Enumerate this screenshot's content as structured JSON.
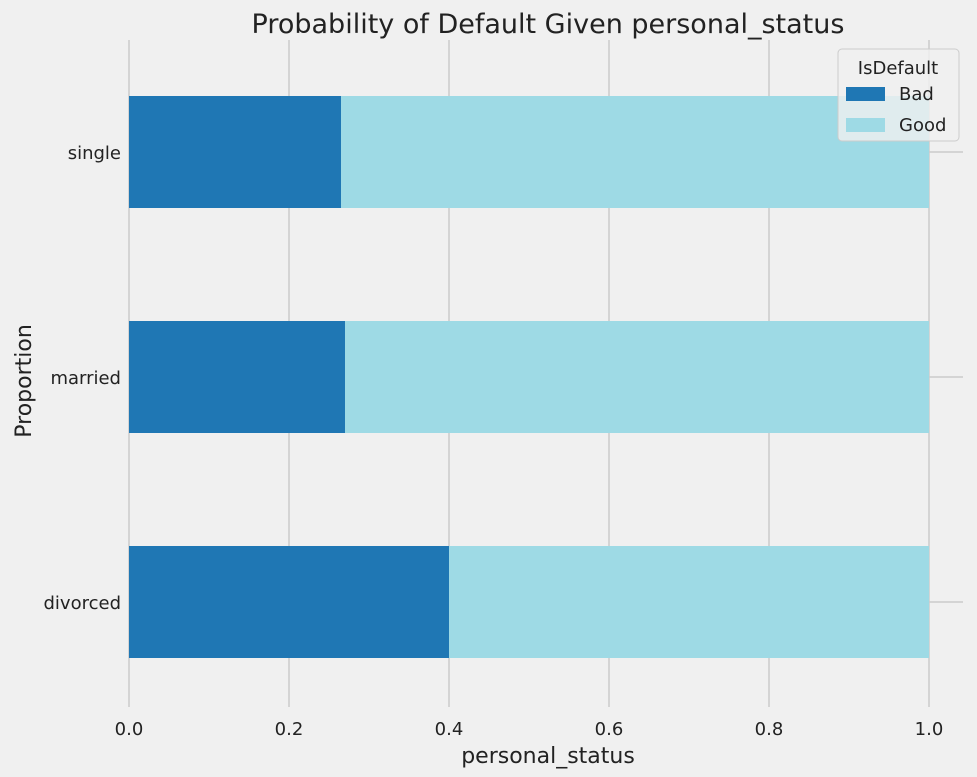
{
  "colors": {
    "background": "#f0f0f0",
    "grid": "#cbcbcb",
    "text": "#222222",
    "legend_border": "#cccccc",
    "legend_bg": "#f0f0f0"
  },
  "chart_data": {
    "type": "bar",
    "orientation": "horizontal",
    "stacked": true,
    "title": "Probability of Default Given personal_status",
    "xlabel": "personal_status",
    "ylabel": "Proportion",
    "categories": [
      "divorced",
      "married",
      "single"
    ],
    "series": [
      {
        "name": "Bad",
        "color": "#1f77b4",
        "values": [
          0.4,
          0.27,
          0.265
        ]
      },
      {
        "name": "Good",
        "color": "#9edae5",
        "values": [
          0.6,
          0.73,
          0.735
        ]
      }
    ],
    "xlim": [
      0,
      1.0
    ],
    "xticks": [
      0.0,
      0.2,
      0.4,
      0.6,
      0.8,
      1.0
    ],
    "xtick_labels": [
      "0.0",
      "0.2",
      "0.4",
      "0.6",
      "0.8",
      "1.0"
    ],
    "grid": true,
    "legend": {
      "title": "IsDefault",
      "placement": "top-right"
    }
  }
}
